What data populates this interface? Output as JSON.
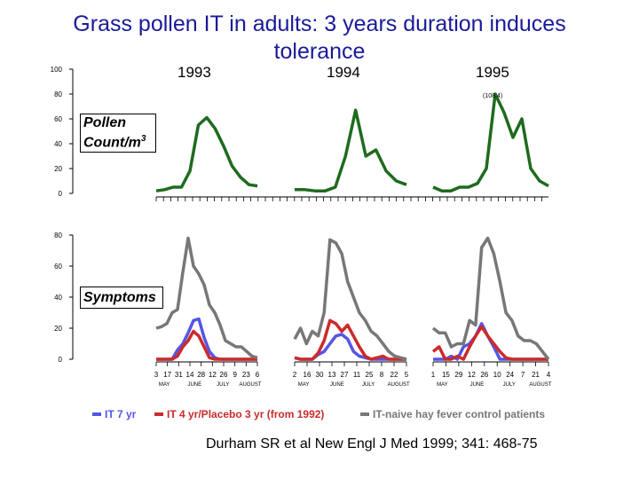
{
  "title": "Grass pollen IT in adults: 3 years duration induces tolerance",
  "citation": "Durham SR et al New Engl J Med 1999; 341: 468-75",
  "years": [
    "1993",
    "1994",
    "1995"
  ],
  "pollen_box": {
    "line1": "Pollen",
    "line2": "Count/m",
    "sup": "3"
  },
  "symptoms_box": "Symptoms",
  "legend": [
    {
      "label": "IT 7 yr",
      "color": "#5555e6"
    },
    {
      "label": "IT 4 yr/Placebo 3 yr (from 1992)",
      "color": "#cc2a2a"
    },
    {
      "label": "IT-naive hay fever control patients",
      "color": "#777777"
    }
  ],
  "chart_data": [
    {
      "type": "line",
      "name": "pollen",
      "yticks": [
        0,
        20,
        40,
        60,
        80,
        100
      ],
      "ylim": [
        0,
        100
      ],
      "color": "#1e6b1e",
      "panels": [
        {
          "year": "1993",
          "values": [
            2,
            3,
            5,
            5,
            18,
            55,
            61,
            52,
            38,
            22,
            13,
            7,
            6
          ]
        },
        {
          "year": "1994",
          "values": [
            3,
            3,
            2,
            2,
            5,
            30,
            67,
            30,
            35,
            18,
            10,
            7
          ]
        },
        {
          "year": "1995",
          "values": [
            5,
            2,
            2,
            5,
            5,
            8,
            20,
            80,
            65,
            45,
            60,
            20,
            10,
            6
          ]
        }
      ],
      "annotation": "(108.4)"
    },
    {
      "type": "line",
      "name": "symptoms",
      "yticks": [
        0,
        20,
        40,
        60,
        80
      ],
      "ylim": [
        0,
        80
      ],
      "xticks": [
        {
          "labels": [
            "3",
            "17",
            "31",
            "14",
            "28",
            "12",
            "26",
            "9",
            "23",
            "6"
          ],
          "months": [
            "MAY",
            "JUNE",
            "JULY",
            "AUGUST"
          ]
        },
        {
          "labels": [
            "2",
            "16",
            "30",
            "13",
            "27",
            "11",
            "25",
            "8",
            "22",
            "5"
          ],
          "months": [
            "MAY",
            "JUNE",
            "JULY",
            "AUGUST"
          ]
        },
        {
          "labels": [
            "1",
            "15",
            "29",
            "12",
            "26",
            "10",
            "24",
            "7",
            "21",
            "4"
          ],
          "months": [
            "MAY",
            "JUNE",
            "JULY",
            "AUGUST"
          ]
        }
      ],
      "panels": [
        {
          "year": "1993",
          "series": [
            {
              "key": "it7",
              "values": [
                0,
                0,
                0,
                0,
                6,
                10,
                17,
                25,
                26,
                14,
                5,
                1,
                0,
                0,
                0,
                0,
                0,
                0,
                0,
                0
              ]
            },
            {
              "key": "it4",
              "values": [
                0,
                0,
                0,
                0,
                2,
                8,
                12,
                18,
                15,
                8,
                1,
                0,
                0,
                0,
                0,
                0,
                0,
                0,
                0,
                0
              ]
            },
            {
              "key": "naive",
              "values": [
                20,
                21,
                23,
                30,
                32,
                56,
                78,
                60,
                55,
                48,
                35,
                30,
                22,
                12,
                10,
                8,
                8,
                5,
                2,
                1
              ]
            }
          ]
        },
        {
          "year": "1994",
          "series": [
            {
              "key": "it7",
              "values": [
                1,
                0,
                0,
                0,
                3,
                5,
                10,
                15,
                16,
                13,
                5,
                2,
                1,
                0,
                0,
                0,
                0,
                0,
                0,
                0
              ]
            },
            {
              "key": "it4",
              "values": [
                1,
                0,
                0,
                0,
                4,
                12,
                25,
                23,
                18,
                22,
                15,
                8,
                2,
                0,
                1,
                2,
                0,
                0,
                0,
                0
              ]
            },
            {
              "key": "naive",
              "values": [
                13,
                20,
                10,
                18,
                15,
                30,
                77,
                75,
                68,
                50,
                40,
                30,
                25,
                18,
                15,
                10,
                5,
                2,
                1,
                0
              ]
            }
          ]
        },
        {
          "year": "1995",
          "series": [
            {
              "key": "it7",
              "values": [
                0,
                0,
                0,
                2,
                0,
                8,
                10,
                15,
                23,
                15,
                8,
                0,
                0,
                0,
                0,
                0,
                0,
                0,
                0,
                0
              ]
            },
            {
              "key": "it4",
              "values": [
                5,
                8,
                0,
                0,
                2,
                0,
                8,
                15,
                21,
                15,
                10,
                5,
                1,
                0,
                0,
                0,
                0,
                0,
                0,
                0
              ]
            },
            {
              "key": "naive",
              "values": [
                20,
                17,
                17,
                8,
                10,
                10,
                25,
                22,
                72,
                78,
                68,
                50,
                30,
                25,
                15,
                12,
                12,
                10,
                5,
                0
              ]
            }
          ]
        }
      ]
    }
  ]
}
